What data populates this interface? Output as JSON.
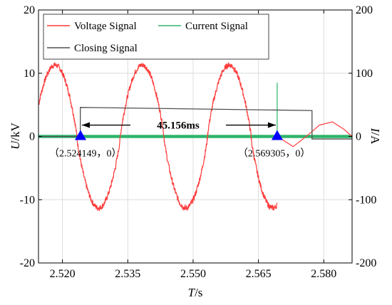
{
  "chart_data": {
    "type": "line",
    "xlabel": {
      "main": "T",
      "unit": "/s"
    },
    "ylabel_left": {
      "main": "U",
      "unit": "/kV"
    },
    "ylabel_right": {
      "main": "I",
      "unit": "/A"
    },
    "xlim": [
      2.5145,
      2.5865
    ],
    "ylim_left": [
      -20,
      20
    ],
    "ylim_right": [
      -200,
      200
    ],
    "x_ticks": [
      2.52,
      2.535,
      2.55,
      2.565,
      2.58
    ],
    "x_tick_labels": [
      "2.520",
      "2.535",
      "2.550",
      "2.565",
      "2.580"
    ],
    "y_left_ticks": [
      -20,
      -10,
      0,
      10,
      20
    ],
    "y_left_tick_labels": [
      "-20",
      "-10",
      "0",
      "10",
      "20"
    ],
    "y_right_ticks": [
      -200,
      -100,
      0,
      100,
      200
    ],
    "y_right_tick_labels": [
      "-200",
      "-100",
      "0",
      "100",
      "200"
    ],
    "grid": true,
    "legend_position": "top-left",
    "series": [
      {
        "name": "Voltage Signal",
        "color": "#ff3b3b",
        "axis": "left",
        "model": {
          "amplitude": 11.3,
          "frequency_hz": 50,
          "phase_ref_x": 2.5183,
          "pre_close_end": 2.5693
        },
        "post_close": {
          "x": [
            2.5693,
            2.573,
            2.5765,
            2.579,
            2.582,
            2.5845,
            2.5865
          ],
          "y": [
            0,
            -1.6,
            0.3,
            1.8,
            2.3,
            1.2,
            0
          ]
        }
      },
      {
        "name": "Current Signal",
        "color": "#2fb36b",
        "axis": "right",
        "model": {
          "level": 0,
          "spike_x": 2.5693,
          "spike_value": 85,
          "band_halfwidth": 2.5
        }
      },
      {
        "name": "Closing Signal",
        "color": "#505050",
        "axis": "left",
        "x": [
          2.5145,
          2.5241,
          2.5241,
          2.5773,
          2.5773,
          2.5865
        ],
        "y": [
          0,
          0,
          4.6,
          4.1,
          -0.4,
          -0.4
        ]
      }
    ],
    "markers": [
      {
        "x": 2.524149,
        "y": 0,
        "label": "（2.524149，0）"
      },
      {
        "x": 2.569305,
        "y": 0,
        "label": "（2.569305，0）"
      }
    ],
    "interval_label": "45.156ms"
  }
}
